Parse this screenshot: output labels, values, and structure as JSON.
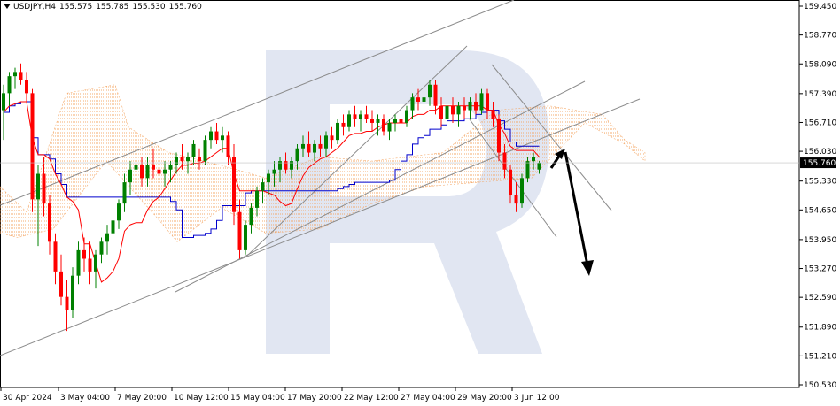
{
  "header": {
    "symbol": "USDJPY,H4",
    "open": "155.575",
    "high": "155.785",
    "low": "155.530",
    "close": "155.760"
  },
  "colors": {
    "bull": "#008000",
    "bear": "#ff0000",
    "kijun": "#0000cd",
    "tenkan": "#ff0000",
    "cloud": "#f4a460",
    "channel": "#8c8c8c",
    "arrow": "#000000",
    "watermark": "#d9e0ef",
    "price_label_bg": "#000000"
  },
  "chart_data": {
    "type": "candlestick",
    "y_ticks": [
      "159.450",
      "158.770",
      "158.090",
      "157.390",
      "156.710",
      "156.030",
      "155.330",
      "154.650",
      "153.950",
      "153.270",
      "152.590",
      "151.890",
      "151.210",
      "150.530"
    ],
    "x_ticks": [
      "30 Apr 2024",
      "3 May 04:00",
      "7 May 20:00",
      "10 May 12:00",
      "15 May 04:00",
      "17 May 20:00",
      "22 May 12:00",
      "27 May 04:00",
      "29 May 20:00",
      "3 Jun 12:00"
    ],
    "ylim": [
      150.53,
      159.45
    ],
    "current_price": "155.760",
    "candles": [
      [
        0,
        157.0,
        157.6,
        156.3,
        157.4
      ],
      [
        1,
        157.4,
        157.9,
        157.1,
        157.8
      ],
      [
        2,
        157.8,
        158.0,
        157.5,
        157.9
      ],
      [
        3,
        157.9,
        158.1,
        157.6,
        157.7
      ],
      [
        4,
        157.7,
        157.9,
        157.2,
        157.4
      ],
      [
        5,
        157.4,
        157.5,
        154.6,
        154.9
      ],
      [
        6,
        154.9,
        155.7,
        153.8,
        155.5
      ],
      [
        7,
        155.5,
        155.9,
        154.5,
        154.8
      ],
      [
        8,
        154.8,
        155.0,
        153.6,
        153.9
      ],
      [
        9,
        153.9,
        154.1,
        152.9,
        153.2
      ],
      [
        10,
        153.2,
        153.6,
        152.4,
        152.6
      ],
      [
        11,
        152.6,
        153.0,
        151.8,
        152.3
      ],
      [
        12,
        152.3,
        153.3,
        152.1,
        153.1
      ],
      [
        13,
        153.1,
        153.9,
        152.9,
        153.7
      ],
      [
        14,
        153.7,
        154.0,
        153.2,
        153.5
      ],
      [
        15,
        153.5,
        153.9,
        152.9,
        153.2
      ],
      [
        16,
        153.2,
        153.7,
        152.8,
        153.6
      ],
      [
        17,
        153.6,
        154.0,
        153.4,
        153.9
      ],
      [
        18,
        153.9,
        154.3,
        153.6,
        154.1
      ],
      [
        19,
        154.1,
        154.6,
        153.8,
        154.4
      ],
      [
        20,
        154.4,
        154.9,
        154.2,
        154.8
      ],
      [
        21,
        154.8,
        155.5,
        154.6,
        155.3
      ],
      [
        22,
        155.3,
        155.8,
        155.0,
        155.6
      ],
      [
        23,
        155.6,
        155.9,
        155.3,
        155.7
      ],
      [
        24,
        155.7,
        155.9,
        155.2,
        155.4
      ],
      [
        25,
        155.4,
        155.9,
        155.2,
        155.7
      ],
      [
        26,
        155.7,
        156.1,
        155.4,
        155.6
      ],
      [
        27,
        155.6,
        155.9,
        155.3,
        155.5
      ],
      [
        28,
        155.5,
        155.8,
        155.2,
        155.6
      ],
      [
        29,
        155.6,
        155.8,
        155.3,
        155.7
      ],
      [
        30,
        155.7,
        156.0,
        155.5,
        155.9
      ],
      [
        31,
        155.9,
        156.2,
        155.6,
        155.8
      ],
      [
        32,
        155.8,
        156.0,
        155.5,
        155.9
      ],
      [
        33,
        155.9,
        156.3,
        155.7,
        156.2
      ],
      [
        34,
        155.9,
        156.1,
        155.6,
        155.8
      ],
      [
        35,
        155.8,
        156.4,
        155.7,
        156.3
      ],
      [
        36,
        156.3,
        156.6,
        156.1,
        156.5
      ],
      [
        37,
        156.5,
        156.7,
        156.2,
        156.3
      ],
      [
        38,
        156.3,
        156.6,
        156.0,
        156.4
      ],
      [
        39,
        156.4,
        156.5,
        155.7,
        155.9
      ],
      [
        40,
        155.9,
        156.2,
        154.3,
        154.6
      ],
      [
        41,
        154.6,
        154.9,
        153.5,
        153.7
      ],
      [
        42,
        153.7,
        154.4,
        153.6,
        154.3
      ],
      [
        43,
        154.3,
        154.8,
        154.1,
        154.7
      ],
      [
        44,
        154.7,
        155.2,
        154.5,
        155.1
      ],
      [
        45,
        155.1,
        155.4,
        154.8,
        155.3
      ],
      [
        46,
        155.3,
        155.6,
        155.0,
        155.5
      ],
      [
        47,
        155.5,
        155.8,
        155.2,
        155.6
      ],
      [
        48,
        155.6,
        155.9,
        155.3,
        155.8
      ],
      [
        49,
        155.8,
        156.0,
        155.5,
        155.6
      ],
      [
        50,
        155.6,
        155.9,
        155.4,
        155.8
      ],
      [
        51,
        155.8,
        156.2,
        155.6,
        156.1
      ],
      [
        52,
        156.1,
        156.4,
        155.9,
        156.2
      ],
      [
        53,
        156.2,
        156.5,
        155.9,
        156.0
      ],
      [
        54,
        156.0,
        156.3,
        155.8,
        156.2
      ],
      [
        55,
        156.2,
        156.4,
        155.9,
        156.1
      ],
      [
        56,
        156.1,
        156.5,
        155.9,
        156.4
      ],
      [
        57,
        156.4,
        156.6,
        156.1,
        156.3
      ],
      [
        58,
        156.3,
        156.8,
        156.2,
        156.7
      ],
      [
        59,
        156.7,
        156.9,
        156.4,
        156.6
      ],
      [
        60,
        156.6,
        157.0,
        156.5,
        156.9
      ],
      [
        61,
        156.9,
        157.1,
        156.6,
        156.8
      ],
      [
        62,
        156.8,
        157.0,
        156.5,
        156.9
      ],
      [
        63,
        156.9,
        157.1,
        156.7,
        156.8
      ],
      [
        64,
        156.8,
        157.0,
        156.5,
        156.7
      ],
      [
        65,
        156.7,
        156.9,
        156.4,
        156.8
      ],
      [
        66,
        156.8,
        156.9,
        156.4,
        156.5
      ],
      [
        67,
        156.5,
        156.8,
        156.3,
        156.7
      ],
      [
        68,
        156.7,
        156.9,
        156.5,
        156.8
      ],
      [
        69,
        156.8,
        157.0,
        156.6,
        156.7
      ],
      [
        70,
        156.7,
        157.1,
        156.6,
        157.0
      ],
      [
        71,
        157.0,
        157.4,
        156.8,
        157.3
      ],
      [
        72,
        157.3,
        157.5,
        157.0,
        157.2
      ],
      [
        73,
        157.2,
        157.4,
        156.9,
        157.3
      ],
      [
        74,
        157.3,
        157.7,
        157.1,
        157.6
      ],
      [
        75,
        157.6,
        157.7,
        156.9,
        157.1
      ],
      [
        76,
        157.1,
        157.3,
        156.6,
        156.8
      ],
      [
        77,
        156.8,
        157.2,
        156.5,
        157.1
      ],
      [
        78,
        157.1,
        157.3,
        156.7,
        156.9
      ],
      [
        79,
        156.9,
        157.2,
        156.6,
        157.1
      ],
      [
        80,
        157.1,
        157.3,
        156.8,
        157.0
      ],
      [
        81,
        157.0,
        157.3,
        156.8,
        157.2
      ],
      [
        82,
        157.2,
        157.4,
        156.9,
        157.0
      ],
      [
        83,
        157.0,
        157.5,
        156.9,
        157.4
      ],
      [
        84,
        157.4,
        157.5,
        156.8,
        157.0
      ],
      [
        85,
        157.0,
        157.2,
        156.6,
        156.8
      ],
      [
        86,
        156.8,
        156.9,
        155.8,
        156.0
      ],
      [
        87,
        156.0,
        156.2,
        155.4,
        155.6
      ],
      [
        88,
        155.6,
        155.7,
        154.8,
        155.0
      ],
      [
        89,
        155.0,
        155.3,
        154.6,
        154.8
      ],
      [
        90,
        154.8,
        155.5,
        154.7,
        155.4
      ],
      [
        91,
        155.4,
        155.9,
        155.3,
        155.8
      ],
      [
        92,
        155.8,
        156.0,
        155.6,
        155.9
      ],
      [
        93,
        155.6,
        155.8,
        155.5,
        155.76
      ]
    ]
  }
}
